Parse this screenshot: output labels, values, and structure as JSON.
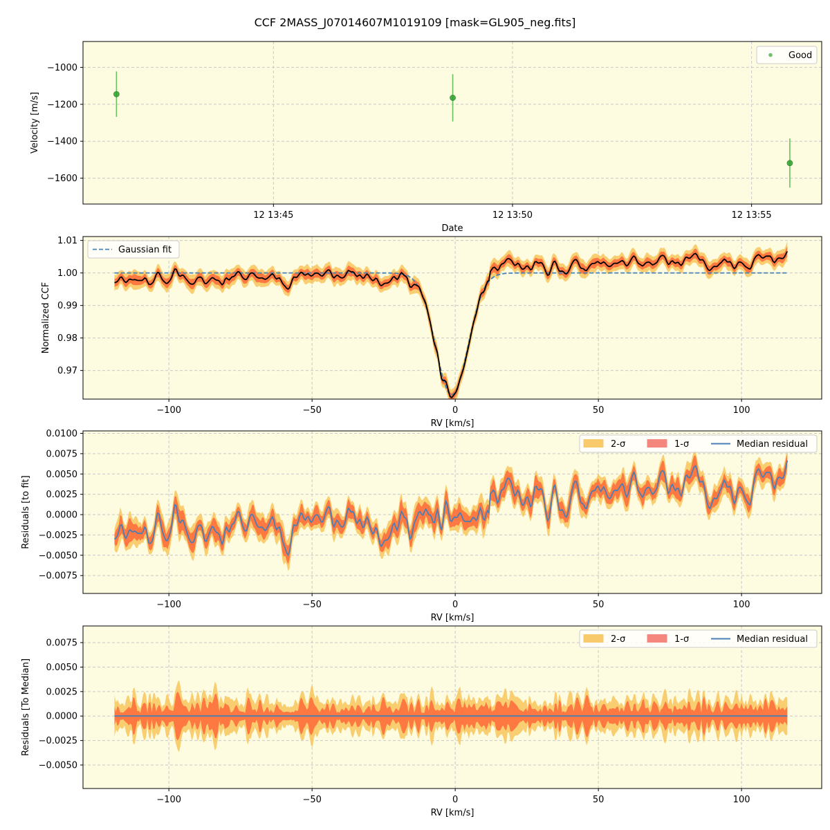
{
  "figure": {
    "title": "CCF 2MASS_J07014607M1019109 [mask=GL905_neg.fits]",
    "axes_facecolor": "#fdfbe0",
    "grid_color": "#c8c8c8"
  },
  "chart_data": [
    {
      "type": "scatter",
      "id": "velocity",
      "xlabel": "Date",
      "ylabel": "Velocity [m/s]",
      "xlim": [
        "12 13:41:01",
        "12 13:56:28"
      ],
      "ylim": [
        -1740,
        -860
      ],
      "xticks": [
        {
          "value": "12 13:45",
          "label": "12 13:45"
        },
        {
          "value": "12 13:50",
          "label": "12 13:50"
        },
        {
          "value": "12 13:55",
          "label": "12 13:55"
        }
      ],
      "yticks": [
        -1000,
        -1200,
        -1400,
        -1600
      ],
      "grid": true,
      "legend": {
        "placement": "top-right",
        "entries": [
          {
            "label": "Good",
            "color": "#4caf50",
            "marker": "dot"
          }
        ]
      },
      "series": [
        {
          "name": "Good",
          "color": "#2ca02c",
          "points": [
            {
              "x": "12 13:41:43",
              "y": -1145,
              "err": 123
            },
            {
              "x": "12 13:48:45",
              "y": -1165,
              "err": 128
            },
            {
              "x": "12 13:55:48",
              "y": -1518,
              "err": 133
            }
          ]
        }
      ]
    },
    {
      "type": "line",
      "id": "ccf",
      "xlabel": "RV [km/s]",
      "ylabel": "Normalized CCF",
      "xlim": [
        -130,
        128
      ],
      "ylim": [
        0.9612,
        1.0112
      ],
      "xticks": [
        -100,
        -50,
        0,
        50,
        100
      ],
      "yticks": [
        0.97,
        0.98,
        0.99,
        1.0,
        1.01
      ],
      "ytick_labels": [
        "0.97",
        "0.98",
        "0.99",
        "1.00",
        "1.01"
      ],
      "grid": true,
      "legend": {
        "placement": "top-left",
        "entries": [
          {
            "label": "Gaussian fit",
            "color": "#4682b4",
            "style": "dashed"
          }
        ]
      },
      "fit": {
        "baseline": 1.0,
        "depth": 0.0375,
        "center": -1.2,
        "sigma": 5.6
      },
      "x_range": [
        -119,
        116
      ],
      "series": [
        {
          "name": "Gaussian fit",
          "color": "#4682b4"
        }
      ]
    },
    {
      "type": "area",
      "id": "residuals_fit",
      "xlabel": "RV [km/s]",
      "ylabel": "Residuals [to fit]",
      "xlim": [
        -130,
        128
      ],
      "ylim": [
        -0.0097,
        0.0103
      ],
      "xticks": [
        -100,
        -50,
        0,
        50,
        100
      ],
      "yticks": [
        -0.0075,
        -0.005,
        -0.0025,
        0.0,
        0.0025,
        0.005,
        0.0075,
        0.01
      ],
      "ytick_labels": [
        "−0.0075",
        "−0.0050",
        "−0.0025",
        "0.0000",
        "0.0025",
        "0.0050",
        "0.0075",
        "0.0100"
      ],
      "grid": true,
      "legend": {
        "placement": "top-right",
        "entries": [
          {
            "label": "2-σ",
            "color": "#f8c55c",
            "kind": "patch"
          },
          {
            "label": "1-σ",
            "color": "#f47a70",
            "kind": "patch"
          },
          {
            "label": "Median residual",
            "color": "#4a7fb5",
            "kind": "line"
          }
        ]
      },
      "x_range": [
        -119,
        116
      ],
      "series": [
        {
          "name": "2-σ",
          "color": "#f8c55c"
        },
        {
          "name": "1-σ",
          "color": "#ff6a3a"
        },
        {
          "name": "Median residual",
          "color": "#4a7fb5"
        }
      ]
    },
    {
      "type": "area",
      "id": "residuals_median",
      "xlabel": "RV [km/s]",
      "ylabel": "Residuals [To Median]",
      "xlim": [
        -130,
        128
      ],
      "ylim": [
        -0.0074,
        0.0092
      ],
      "xticks": [
        -100,
        -50,
        0,
        50,
        100
      ],
      "yticks": [
        -0.005,
        -0.0025,
        0.0,
        0.0025,
        0.005,
        0.0075
      ],
      "ytick_labels": [
        "−0.0050",
        "−0.0025",
        "0.0000",
        "0.0025",
        "0.0050",
        "0.0075"
      ],
      "grid": true,
      "legend": {
        "placement": "top-right",
        "entries": [
          {
            "label": "2-σ",
            "color": "#f8c55c",
            "kind": "patch"
          },
          {
            "label": "1-σ",
            "color": "#f47a70",
            "kind": "patch"
          },
          {
            "label": "Median residual",
            "color": "#4a7fb5",
            "kind": "line"
          }
        ]
      },
      "x_range": [
        -119,
        116
      ],
      "series": [
        {
          "name": "2-σ",
          "color": "#f8c55c"
        },
        {
          "name": "1-σ",
          "color": "#ff6a3a"
        },
        {
          "name": "Median residual",
          "color": "#4a7fb5"
        }
      ]
    }
  ]
}
